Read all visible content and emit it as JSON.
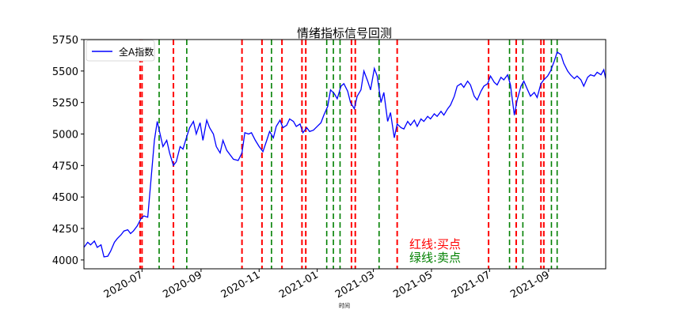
{
  "chart_data": {
    "type": "line",
    "title": "情绪指标信号回测",
    "xlabel": "时间",
    "ylabel": "",
    "xlim": [
      "2020-05-01",
      "2021-10-31"
    ],
    "ylim": [
      3930,
      5750
    ],
    "y_ticks": [
      4000,
      4250,
      4500,
      4750,
      5000,
      5250,
      5500,
      5750
    ],
    "x_ticks": [
      {
        "date": "2020-07-01",
        "label": "2020-07"
      },
      {
        "date": "2020-09-01",
        "label": "2020-09"
      },
      {
        "date": "2020-11-01",
        "label": "2020-11"
      },
      {
        "date": "2021-01-01",
        "label": "2021-01"
      },
      {
        "date": "2021-03-01",
        "label": "2021-03"
      },
      {
        "date": "2021-05-01",
        "label": "2021-05"
      },
      {
        "date": "2021-07-01",
        "label": "2021-07"
      },
      {
        "date": "2021-09-01",
        "label": "2021-09"
      }
    ],
    "legend": {
      "position": "top-left",
      "entries": [
        "全A指数"
      ]
    },
    "grid": false,
    "series": [
      {
        "name": "全A指数",
        "color": "#0000ff",
        "points": [
          [
            "2020-05-01",
            4100
          ],
          [
            "2020-05-05",
            4140
          ],
          [
            "2020-05-08",
            4120
          ],
          [
            "2020-05-12",
            4150
          ],
          [
            "2020-05-15",
            4100
          ],
          [
            "2020-05-19",
            4120
          ],
          [
            "2020-05-22",
            4025
          ],
          [
            "2020-05-26",
            4030
          ],
          [
            "2020-05-29",
            4070
          ],
          [
            "2020-06-02",
            4140
          ],
          [
            "2020-06-05",
            4170
          ],
          [
            "2020-06-09",
            4200
          ],
          [
            "2020-06-12",
            4230
          ],
          [
            "2020-06-16",
            4240
          ],
          [
            "2020-06-19",
            4210
          ],
          [
            "2020-06-22",
            4230
          ],
          [
            "2020-06-26",
            4270
          ],
          [
            "2020-06-30",
            4330
          ],
          [
            "2020-07-03",
            4350
          ],
          [
            "2020-07-07",
            4340
          ],
          [
            "2020-07-10",
            4600
          ],
          [
            "2020-07-14",
            4950
          ],
          [
            "2020-07-17",
            5100
          ],
          [
            "2020-07-20",
            5000
          ],
          [
            "2020-07-23",
            4900
          ],
          [
            "2020-07-27",
            4950
          ],
          [
            "2020-07-30",
            4850
          ],
          [
            "2020-08-03",
            4750
          ],
          [
            "2020-08-06",
            4780
          ],
          [
            "2020-08-10",
            4900
          ],
          [
            "2020-08-13",
            4880
          ],
          [
            "2020-08-17",
            4980
          ],
          [
            "2020-08-20",
            5050
          ],
          [
            "2020-08-24",
            5100
          ],
          [
            "2020-08-27",
            5000
          ],
          [
            "2020-08-31",
            5090
          ],
          [
            "2020-09-03",
            4950
          ],
          [
            "2020-09-07",
            5110
          ],
          [
            "2020-09-10",
            5050
          ],
          [
            "2020-09-14",
            5000
          ],
          [
            "2020-09-17",
            4900
          ],
          [
            "2020-09-21",
            4850
          ],
          [
            "2020-09-24",
            4950
          ],
          [
            "2020-09-28",
            4870
          ],
          [
            "2020-10-05",
            4800
          ],
          [
            "2020-10-10",
            4790
          ],
          [
            "2020-10-14",
            4850
          ],
          [
            "2020-10-17",
            5010
          ],
          [
            "2020-10-21",
            5000
          ],
          [
            "2020-10-24",
            5010
          ],
          [
            "2020-10-28",
            4950
          ],
          [
            "2020-11-01",
            4900
          ],
          [
            "2020-11-05",
            4860
          ],
          [
            "2020-11-09",
            4950
          ],
          [
            "2020-11-12",
            5020
          ],
          [
            "2020-11-16",
            4970
          ],
          [
            "2020-11-19",
            5060
          ],
          [
            "2020-11-23",
            5110
          ],
          [
            "2020-11-26",
            5050
          ],
          [
            "2020-11-30",
            5070
          ],
          [
            "2020-12-03",
            5120
          ],
          [
            "2020-12-07",
            5100
          ],
          [
            "2020-12-10",
            5060
          ],
          [
            "2020-12-14",
            5080
          ],
          [
            "2020-12-17",
            5010
          ],
          [
            "2020-12-21",
            5050
          ],
          [
            "2020-12-24",
            5020
          ],
          [
            "2020-12-28",
            5030
          ],
          [
            "2021-01-01",
            5060
          ],
          [
            "2021-01-05",
            5090
          ],
          [
            "2021-01-08",
            5150
          ],
          [
            "2021-01-12",
            5220
          ],
          [
            "2021-01-15",
            5350
          ],
          [
            "2021-01-19",
            5320
          ],
          [
            "2021-01-22",
            5280
          ],
          [
            "2021-01-26",
            5380
          ],
          [
            "2021-01-29",
            5400
          ],
          [
            "2021-02-02",
            5340
          ],
          [
            "2021-02-05",
            5250
          ],
          [
            "2021-02-09",
            5200
          ],
          [
            "2021-02-12",
            5300
          ],
          [
            "2021-02-16",
            5350
          ],
          [
            "2021-02-19",
            5500
          ],
          [
            "2021-02-23",
            5420
          ],
          [
            "2021-02-26",
            5350
          ],
          [
            "2021-03-02",
            5520
          ],
          [
            "2021-03-05",
            5460
          ],
          [
            "2021-03-09",
            5250
          ],
          [
            "2021-03-12",
            5330
          ],
          [
            "2021-03-16",
            5100
          ],
          [
            "2021-03-19",
            5170
          ],
          [
            "2021-03-23",
            4970
          ],
          [
            "2021-03-26",
            5080
          ],
          [
            "2021-03-30",
            5050
          ],
          [
            "2021-04-02",
            5040
          ],
          [
            "2021-04-06",
            5100
          ],
          [
            "2021-04-09",
            5070
          ],
          [
            "2021-04-13",
            5110
          ],
          [
            "2021-04-16",
            5060
          ],
          [
            "2021-04-20",
            5120
          ],
          [
            "2021-04-23",
            5100
          ],
          [
            "2021-04-27",
            5140
          ],
          [
            "2021-04-30",
            5120
          ],
          [
            "2021-05-04",
            5160
          ],
          [
            "2021-05-07",
            5140
          ],
          [
            "2021-05-11",
            5180
          ],
          [
            "2021-05-14",
            5150
          ],
          [
            "2021-05-18",
            5200
          ],
          [
            "2021-05-21",
            5230
          ],
          [
            "2021-05-25",
            5300
          ],
          [
            "2021-05-28",
            5380
          ],
          [
            "2021-06-01",
            5400
          ],
          [
            "2021-06-04",
            5370
          ],
          [
            "2021-06-08",
            5420
          ],
          [
            "2021-06-11",
            5390
          ],
          [
            "2021-06-15",
            5300
          ],
          [
            "2021-06-18",
            5270
          ],
          [
            "2021-06-22",
            5340
          ],
          [
            "2021-06-25",
            5380
          ],
          [
            "2021-06-29",
            5400
          ],
          [
            "2021-07-02",
            5460
          ],
          [
            "2021-07-06",
            5410
          ],
          [
            "2021-07-09",
            5390
          ],
          [
            "2021-07-13",
            5450
          ],
          [
            "2021-07-16",
            5430
          ],
          [
            "2021-07-20",
            5470
          ],
          [
            "2021-07-23",
            5390
          ],
          [
            "2021-07-27",
            5150
          ],
          [
            "2021-07-30",
            5270
          ],
          [
            "2021-08-03",
            5380
          ],
          [
            "2021-08-06",
            5420
          ],
          [
            "2021-08-10",
            5350
          ],
          [
            "2021-08-13",
            5300
          ],
          [
            "2021-08-17",
            5330
          ],
          [
            "2021-08-20",
            5290
          ],
          [
            "2021-08-24",
            5400
          ],
          [
            "2021-08-27",
            5430
          ],
          [
            "2021-08-31",
            5460
          ],
          [
            "2021-09-03",
            5500
          ],
          [
            "2021-09-07",
            5580
          ],
          [
            "2021-09-10",
            5650
          ],
          [
            "2021-09-14",
            5630
          ],
          [
            "2021-09-17",
            5560
          ],
          [
            "2021-09-21",
            5500
          ],
          [
            "2021-09-24",
            5470
          ],
          [
            "2021-09-28",
            5440
          ],
          [
            "2021-10-01",
            5460
          ],
          [
            "2021-10-05",
            5430
          ],
          [
            "2021-10-08",
            5380
          ],
          [
            "2021-10-12",
            5450
          ],
          [
            "2021-10-15",
            5470
          ],
          [
            "2021-10-19",
            5460
          ],
          [
            "2021-10-22",
            5490
          ],
          [
            "2021-10-26",
            5470
          ],
          [
            "2021-10-29",
            5510
          ],
          [
            "2021-10-31",
            5440
          ]
        ]
      }
    ],
    "buy_signals": {
      "color": "#ff0000",
      "dates": [
        "2020-06-29",
        "2020-07-01",
        "2020-08-03",
        "2020-10-14",
        "2020-11-04",
        "2020-11-25",
        "2020-12-16",
        "2020-12-20",
        "2021-02-06",
        "2021-02-10",
        "2021-03-26",
        "2021-06-30",
        "2021-07-29",
        "2021-08-24",
        "2021-08-27"
      ]
    },
    "sell_signals": {
      "color": "#008000",
      "dates": [
        "2020-07-19",
        "2020-08-17",
        "2020-11-14",
        "2021-01-11",
        "2021-01-18",
        "2021-01-25",
        "2021-03-07",
        "2021-07-22",
        "2021-08-05",
        "2021-09-04",
        "2021-09-10"
      ]
    },
    "annotations": [
      {
        "text": "红线:买点",
        "color": "#ff0000"
      },
      {
        "text": "绿线:卖点",
        "color": "#008000"
      }
    ]
  }
}
